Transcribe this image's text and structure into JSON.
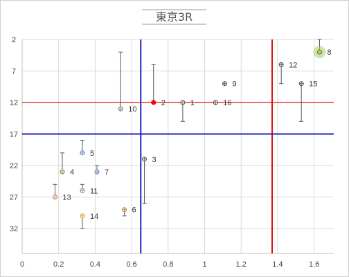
{
  "chart_data": {
    "type": "scatter",
    "title": "東京3R",
    "xlabel": "",
    "ylabel": "",
    "xlim": [
      0,
      1.7
    ],
    "ylim": [
      2,
      36
    ],
    "y_reversed": true,
    "x_ticks": [
      0,
      0.2,
      0.4,
      0.6,
      0.8,
      1,
      1.2,
      1.4,
      1.6
    ],
    "x_tick_labels": [
      "0",
      "0.2",
      "0.4",
      "0.6",
      "0.8",
      "1",
      "1.2",
      "1.4",
      "1.6"
    ],
    "y_ticks": [
      2,
      7,
      12,
      17,
      22,
      27,
      32
    ],
    "y_tick_labels": [
      "2",
      "7",
      "12",
      "17",
      "22",
      "27",
      "32"
    ],
    "grid": true,
    "legend": "none",
    "reference_lines": {
      "vertical": [
        {
          "x": 0.65,
          "color": "#1f1fc8"
        },
        {
          "x": 1.37,
          "color": "#e01010"
        }
      ],
      "horizontal": [
        {
          "y": 12,
          "color": "#e01010"
        },
        {
          "y": 17,
          "color": "#1f1fc8"
        }
      ]
    },
    "points": [
      {
        "label": "1",
        "x": 0.88,
        "y": 12,
        "error_to": 15,
        "color": "#555555"
      },
      {
        "label": "2",
        "x": 0.72,
        "y": 12,
        "error_to": 6,
        "color": "#ff0000",
        "fill": "#ff0000"
      },
      {
        "label": "3",
        "x": 0.67,
        "y": 21,
        "error_to": 28,
        "color": "#555555"
      },
      {
        "label": "4",
        "x": 0.22,
        "y": 23,
        "error_to": 20,
        "color": "#888855"
      },
      {
        "label": "5",
        "x": 0.33,
        "y": 20,
        "error_to": 18,
        "color": "#5b7fb0"
      },
      {
        "label": "6",
        "x": 0.56,
        "y": 29,
        "error_to": 30,
        "color": "#a08040"
      },
      {
        "label": "7",
        "x": 0.41,
        "y": 23,
        "error_to": 22,
        "color": "#5b7fb0"
      },
      {
        "label": "8",
        "x": 1.63,
        "y": 4,
        "error_to": 2,
        "color": "#555555",
        "fill": "#f0d020",
        "highlight": "#9ed46a"
      },
      {
        "label": "9",
        "x": 1.11,
        "y": 9,
        "error_to": null,
        "color": "#444444"
      },
      {
        "label": "10",
        "x": 0.54,
        "y": 13,
        "error_to": 4,
        "color": "#777777"
      },
      {
        "label": "11",
        "x": 0.33,
        "y": 26,
        "error_to": 25,
        "color": "#888888"
      },
      {
        "label": "12",
        "x": 1.42,
        "y": 6,
        "error_to": 9,
        "color": "#444444"
      },
      {
        "label": "13",
        "x": 0.18,
        "y": 27,
        "error_to": 25,
        "color": "#c08060"
      },
      {
        "label": "14",
        "x": 0.33,
        "y": 30,
        "error_to": 32,
        "color": "#c8a020"
      },
      {
        "label": "15",
        "x": 1.53,
        "y": 9,
        "error_to": 15,
        "color": "#444444"
      },
      {
        "label": "16",
        "x": 1.06,
        "y": 12,
        "error_to": null,
        "color": "#444444"
      }
    ]
  }
}
